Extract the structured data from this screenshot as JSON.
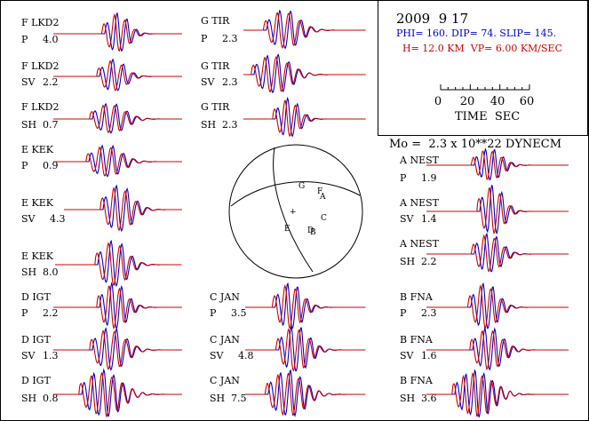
{
  "header": {
    "date": "2009  9 17",
    "mechanism": "PHI= 160. DIP= 74. SLIP= 145.",
    "depth_velocity": "H= 12.0 KM  VP= 6.00 KM/SEC",
    "time_ticks": [
      "0",
      "20",
      "40",
      "60"
    ],
    "time_label": "TIME  SEC",
    "moment": "Mo =  2.3 x 10**22 DYNECM"
  },
  "colors": {
    "observed": "#0000d0",
    "synthetic": "#d00000",
    "frame": "#000000"
  },
  "beachball": {
    "polarity_labels": [
      "G",
      "F",
      "A",
      "+",
      "C",
      "E",
      "D",
      "B"
    ]
  },
  "traces": [
    {
      "station": "F LKD2",
      "phase": "P",
      "amp": "4.0"
    },
    {
      "station": "F LKD2",
      "phase": "SV",
      "amp": "2.2"
    },
    {
      "station": "F LKD2",
      "phase": "SH",
      "amp": "0.7"
    },
    {
      "station": "E KEK",
      "phase": "P",
      "amp": "0.9"
    },
    {
      "station": "E KEK",
      "phase": "SV",
      "amp": "4.3"
    },
    {
      "station": "E KEK",
      "phase": "SH",
      "amp": "8.0"
    },
    {
      "station": "D IGT",
      "phase": "P",
      "amp": "2.2"
    },
    {
      "station": "D IGT",
      "phase": "SV",
      "amp": "1.3"
    },
    {
      "station": "D IGT",
      "phase": "SH",
      "amp": "0.8"
    },
    {
      "station": "G TIR",
      "phase": "P",
      "amp": "2.3"
    },
    {
      "station": "G TIR",
      "phase": "SV",
      "amp": "2.3"
    },
    {
      "station": "G TIR",
      "phase": "SH",
      "amp": "2.3"
    },
    {
      "station": "C JAN",
      "phase": "P",
      "amp": "3.5"
    },
    {
      "station": "C JAN",
      "phase": "SV",
      "amp": "4.8"
    },
    {
      "station": "C JAN",
      "phase": "SH",
      "amp": "7.5"
    },
    {
      "station": "A NEST",
      "phase": "P",
      "amp": "1.9"
    },
    {
      "station": "A NEST",
      "phase": "SV",
      "amp": "1.4"
    },
    {
      "station": "A NEST",
      "phase": "SH",
      "amp": "2.2"
    },
    {
      "station": "B FNA",
      "phase": "P",
      "amp": "2.3"
    },
    {
      "station": "B FNA",
      "phase": "SV",
      "amp": "1.6"
    },
    {
      "station": "B FNA",
      "phase": "SH",
      "amp": "3.6"
    }
  ]
}
